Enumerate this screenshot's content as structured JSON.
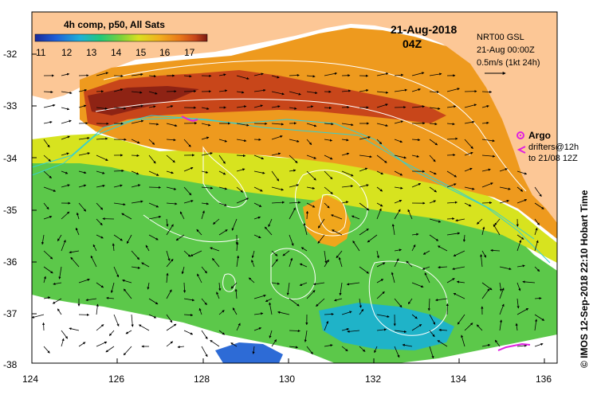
{
  "title": "4h comp, p50, All Sats",
  "date_label": "21-Aug-2018",
  "time_label": "04Z",
  "product_label": "NRT00 GSL",
  "product_time": "21-Aug 00:00Z",
  "scale_vector_label": "0.5m/s (1kt 24h)",
  "argo_label": "Argo",
  "drifter_label_1": "drifters@12h",
  "drifter_label_2": "to 21/08 12Z",
  "credit": "© IMOS 12-Sep-2018 22:10 Hobart Time",
  "colorbar": {
    "ticks": [
      "11",
      "12",
      "13",
      "14",
      "15",
      "16",
      "17"
    ],
    "colors": [
      "#1a2a9a",
      "#1f5fd8",
      "#1fb0d8",
      "#22c87a",
      "#7dd23a",
      "#d9e021",
      "#f2b01e",
      "#e9781a",
      "#c8461a",
      "#7a1a12"
    ]
  },
  "axes": {
    "lon_ticks": [
      "124",
      "126",
      "128",
      "130",
      "132",
      "134",
      "136"
    ],
    "lat_ticks": [
      "-32",
      "-33",
      "-34",
      "-35",
      "-36",
      "-37",
      "-38"
    ]
  },
  "colors": {
    "land": "#fcc796",
    "cloud": "#ffffff",
    "contour": "#ffffff",
    "shelf": "#35d0d0",
    "argo_marker": "#e020e0",
    "drifter": "#e020e0"
  }
}
